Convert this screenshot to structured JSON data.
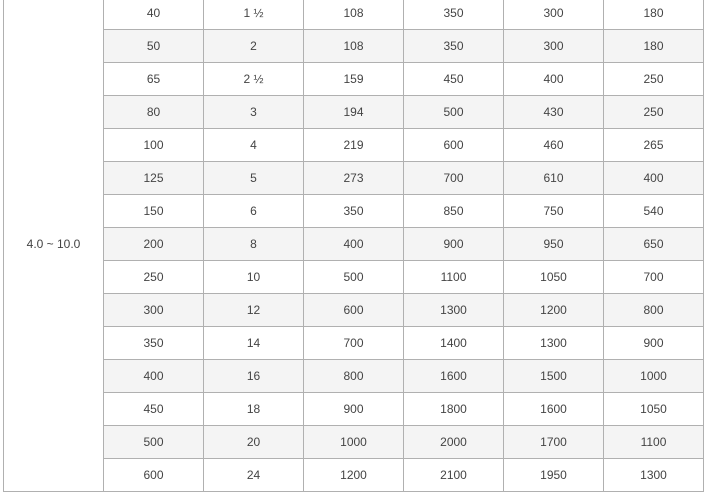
{
  "table": {
    "pressure_range": "4.0 ~ 10.0",
    "rows": [
      [
        "40",
        "1 ½",
        "108",
        "350",
        "300",
        "180"
      ],
      [
        "50",
        "2",
        "108",
        "350",
        "300",
        "180"
      ],
      [
        "65",
        "2 ½",
        "159",
        "450",
        "400",
        "250"
      ],
      [
        "80",
        "3",
        "194",
        "500",
        "430",
        "250"
      ],
      [
        "100",
        "4",
        "219",
        "600",
        "460",
        "265"
      ],
      [
        "125",
        "5",
        "273",
        "700",
        "610",
        "400"
      ],
      [
        "150",
        "6",
        "350",
        "850",
        "750",
        "540"
      ],
      [
        "200",
        "8",
        "400",
        "900",
        "950",
        "650"
      ],
      [
        "250",
        "10",
        "500",
        "1100",
        "1050",
        "700"
      ],
      [
        "300",
        "12",
        "600",
        "1300",
        "1200",
        "800"
      ],
      [
        "350",
        "14",
        "700",
        "1400",
        "1300",
        "900"
      ],
      [
        "400",
        "16",
        "800",
        "1600",
        "1500",
        "1000"
      ],
      [
        "450",
        "18",
        "900",
        "1800",
        "1600",
        "1050"
      ],
      [
        "500",
        "20",
        "1000",
        "2000",
        "1700",
        "1100"
      ],
      [
        "600",
        "24",
        "1200",
        "2100",
        "1950",
        "1300"
      ]
    ]
  }
}
